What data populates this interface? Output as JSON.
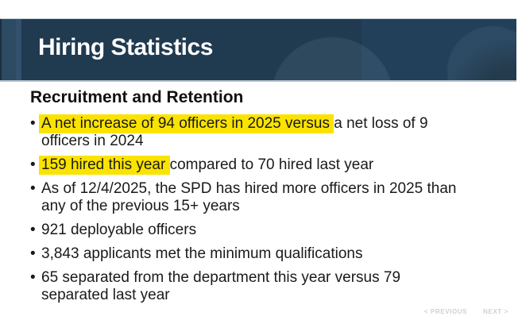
{
  "slide": {
    "title": "Hiring Statistics",
    "heading": "Recruitment and Retention",
    "bullet_char": "•",
    "bullets": [
      {
        "segments": [
          {
            "text": "A net increase of 94 officers in 2025 versus ",
            "highlight": true
          },
          {
            "text": "a net loss of 9\nofficers in 2024",
            "highlight": false
          }
        ]
      },
      {
        "segments": [
          {
            "text": "159 hired this year ",
            "highlight": true
          },
          {
            "text": "compared to 70 hired last year",
            "highlight": false
          }
        ]
      },
      {
        "segments": [
          {
            "text": "As of 12/4/2025, the SPD has hired more officers in 2025 than\nany of the previous 15+ years",
            "highlight": false
          }
        ]
      },
      {
        "segments": [
          {
            "text": "921 deployable officers",
            "highlight": false
          }
        ]
      },
      {
        "segments": [
          {
            "text": "3,843 applicants met the minimum qualifications",
            "highlight": false
          }
        ]
      },
      {
        "segments": [
          {
            "text": "65 separated from the department this year versus 79\nseparated last year",
            "highlight": false
          }
        ]
      }
    ]
  },
  "nav": {
    "previous_label": "< PREVIOUS",
    "next_label": "NEXT >"
  },
  "colors": {
    "banner_navy": "#203a50",
    "banner_left_strip": "#2d4a63",
    "highlight_yellow": "#fbe300",
    "body_text": "#1a1a1a",
    "title_text": "#ffffff",
    "nav_text": "#ccd1d5"
  }
}
